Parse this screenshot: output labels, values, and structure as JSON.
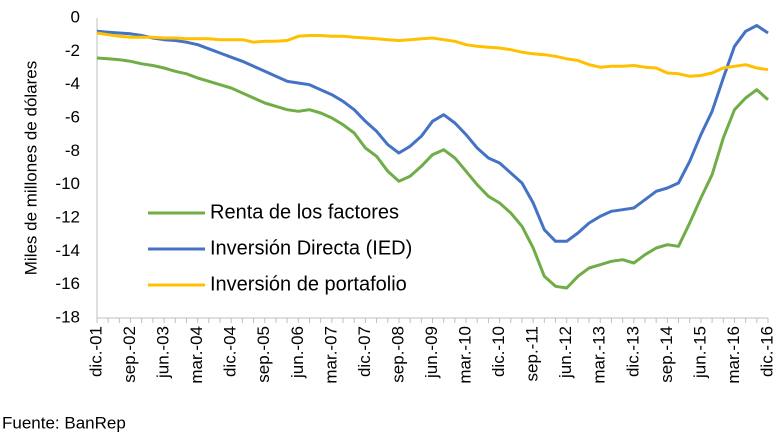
{
  "chart_data": {
    "type": "line",
    "y_label": "Miles de millones de dólares",
    "source": "Fuente: BanRep",
    "categories": [
      "dic.-01",
      null,
      null,
      "sep.-02",
      null,
      null,
      "jun.-03",
      null,
      null,
      "mar.-04",
      null,
      null,
      "dic.-04",
      null,
      null,
      "sep.-05",
      null,
      null,
      "jun.-06",
      null,
      null,
      "mar.-07",
      null,
      null,
      "dic.-07",
      null,
      null,
      "sep.-08",
      null,
      null,
      "jun.-09",
      null,
      null,
      "mar.-10",
      null,
      null,
      "dic.-10",
      null,
      null,
      "sep.-11",
      null,
      null,
      "jun.-12",
      null,
      null,
      "mar.-13",
      null,
      null,
      "dic.-13",
      null,
      null,
      "sep.-14",
      null,
      null,
      "jun.-15",
      null,
      null,
      "mar.-16",
      null,
      null,
      "dic.-16"
    ],
    "series": [
      {
        "name": "Renta de los factores",
        "color": "#70ad47",
        "values": [
          -2.4,
          -2.45,
          -2.5,
          -2.6,
          -2.75,
          -2.85,
          -3.0,
          -3.2,
          -3.35,
          -3.6,
          -3.8,
          -4.0,
          -4.2,
          -4.5,
          -4.8,
          -5.1,
          -5.3,
          -5.5,
          -5.6,
          -5.5,
          -5.7,
          -6.0,
          -6.4,
          -6.9,
          -7.8,
          -8.3,
          -9.2,
          -9.8,
          -9.5,
          -8.9,
          -8.2,
          -7.9,
          -8.4,
          -9.2,
          -10.0,
          -10.7,
          -11.1,
          -11.7,
          -12.5,
          -13.8,
          -15.5,
          -16.1,
          -16.2,
          -15.5,
          -15.0,
          -14.8,
          -14.6,
          -14.5,
          -14.7,
          -14.2,
          -13.8,
          -13.6,
          -13.7,
          -12.3,
          -10.8,
          -9.4,
          -7.2,
          -5.5,
          -4.8,
          -4.3,
          -4.9
        ]
      },
      {
        "name": "Inversión Directa (IED)",
        "color": "#4472c4",
        "values": [
          -0.8,
          -0.85,
          -0.9,
          -0.95,
          -1.05,
          -1.2,
          -1.3,
          -1.35,
          -1.45,
          -1.6,
          -1.85,
          -2.1,
          -2.35,
          -2.6,
          -2.9,
          -3.2,
          -3.5,
          -3.8,
          -3.9,
          -4.0,
          -4.3,
          -4.6,
          -5.0,
          -5.5,
          -6.2,
          -6.8,
          -7.6,
          -8.1,
          -7.7,
          -7.1,
          -6.2,
          -5.8,
          -6.3,
          -7.0,
          -7.8,
          -8.4,
          -8.7,
          -9.3,
          -9.9,
          -11.1,
          -12.7,
          -13.4,
          -13.4,
          -12.9,
          -12.3,
          -11.9,
          -11.6,
          -11.5,
          -11.4,
          -10.9,
          -10.4,
          -10.2,
          -9.9,
          -8.6,
          -7.0,
          -5.6,
          -3.6,
          -1.7,
          -0.8,
          -0.45,
          -0.9
        ]
      },
      {
        "name": "Inversión de portafolio",
        "color": "#ffc000",
        "values": [
          -0.9,
          -1.0,
          -1.1,
          -1.15,
          -1.15,
          -1.15,
          -1.2,
          -1.2,
          -1.25,
          -1.25,
          -1.25,
          -1.3,
          -1.3,
          -1.3,
          -1.45,
          -1.4,
          -1.4,
          -1.35,
          -1.1,
          -1.05,
          -1.05,
          -1.1,
          -1.1,
          -1.15,
          -1.2,
          -1.25,
          -1.3,
          -1.35,
          -1.3,
          -1.25,
          -1.2,
          -1.3,
          -1.4,
          -1.6,
          -1.7,
          -1.75,
          -1.8,
          -1.9,
          -2.05,
          -2.15,
          -2.2,
          -2.3,
          -2.45,
          -2.55,
          -2.8,
          -2.95,
          -2.9,
          -2.9,
          -2.85,
          -2.95,
          -3.0,
          -3.3,
          -3.35,
          -3.5,
          -3.45,
          -3.3,
          -3.0,
          -2.9,
          -2.8,
          -3.0,
          -3.1
        ]
      }
    ],
    "ylim": [
      -18,
      0
    ],
    "yticks": [
      0,
      -2,
      -4,
      -6,
      -8,
      -10,
      -12,
      -14,
      -16,
      -18
    ],
    "grid": false,
    "legend": "center left"
  }
}
